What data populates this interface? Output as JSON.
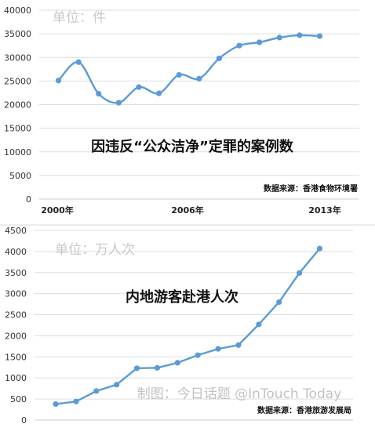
{
  "chart_data": [
    {
      "type": "line",
      "title": "因违反“公众洁净”定罪的案例数",
      "unit_label": "单位：件",
      "source": "数据来源：香港食物环境署",
      "xtick_labels": [
        "2000年",
        "2006年",
        "2013年"
      ],
      "x": [
        2000,
        2001,
        2002,
        2003,
        2004,
        2005,
        2006,
        2007,
        2008,
        2009,
        2010,
        2011,
        2012,
        2013
      ],
      "values": [
        25100,
        29000,
        22300,
        20400,
        23700,
        22400,
        26300,
        25500,
        29800,
        32500,
        33200,
        34200,
        34700,
        34500
      ],
      "ylim": [
        0,
        40000
      ],
      "yticks": [
        0,
        5000,
        10000,
        15000,
        20000,
        25000,
        30000,
        35000,
        40000
      ],
      "grid": true,
      "smooth": true
    },
    {
      "type": "line",
      "title": "内地游客赴港人次",
      "unit_label": "单位：万人次",
      "source": "数据来源：香港旅游发展局",
      "watermark": "制图：今日话题 @InTouch Today",
      "x": [
        2000,
        2001,
        2002,
        2003,
        2004,
        2005,
        2006,
        2007,
        2008,
        2009,
        2010,
        2011,
        2012,
        2013
      ],
      "values": [
        380,
        440,
        690,
        840,
        1230,
        1240,
        1360,
        1540,
        1690,
        1780,
        2270,
        2800,
        3490,
        4070
      ],
      "ylim": [
        0,
        4500
      ],
      "yticks": [
        0,
        500,
        1000,
        1500,
        2000,
        2500,
        3000,
        3500,
        4000,
        4500
      ],
      "grid": true,
      "smooth": false
    }
  ]
}
